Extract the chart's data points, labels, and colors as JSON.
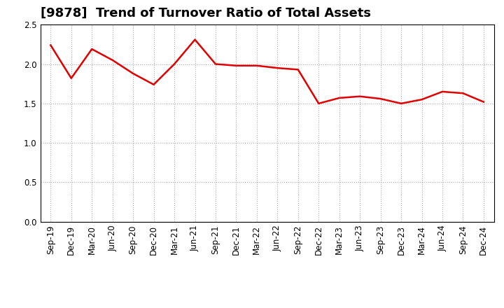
{
  "title": "[9878]  Trend of Turnover Ratio of Total Assets",
  "x_labels": [
    "Sep-19",
    "Dec-19",
    "Mar-20",
    "Jun-20",
    "Sep-20",
    "Dec-20",
    "Mar-21",
    "Jun-21",
    "Sep-21",
    "Dec-21",
    "Mar-22",
    "Jun-22",
    "Sep-22",
    "Dec-22",
    "Mar-23",
    "Jun-23",
    "Sep-23",
    "Dec-23",
    "Mar-24",
    "Jun-24",
    "Sep-24",
    "Dec-24"
  ],
  "y_values": [
    2.24,
    1.82,
    2.19,
    2.05,
    1.88,
    1.74,
    2.0,
    2.31,
    2.0,
    1.98,
    1.98,
    1.95,
    1.93,
    1.5,
    1.57,
    1.59,
    1.56,
    1.5,
    1.55,
    1.65,
    1.63,
    1.52
  ],
  "line_color": "#e00000",
  "line_width": 1.8,
  "ylim": [
    0.0,
    2.5
  ],
  "yticks": [
    0.0,
    0.5,
    1.0,
    1.5,
    2.0,
    2.5
  ],
  "grid_color": "#aaaaaa",
  "background_color": "#ffffff",
  "title_fontsize": 13,
  "tick_fontsize": 8.5
}
